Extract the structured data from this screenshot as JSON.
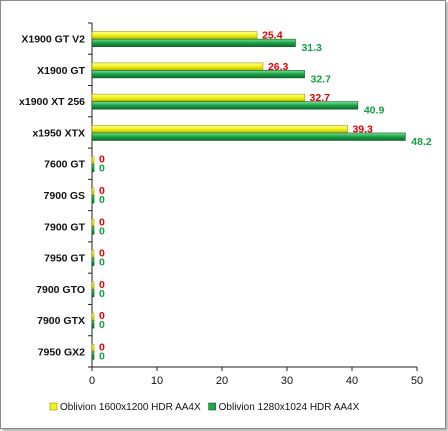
{
  "chart_data": {
    "type": "bar",
    "orientation": "horizontal",
    "categories": [
      "X1900 GT V2",
      "X1900 GT",
      "x1900 XT 256",
      "x1950 XTX",
      "7600 GT",
      "7900 GS",
      "7900 GT",
      "7950 GT",
      "7900 GTO",
      "7900 GTX",
      "7950 GX2"
    ],
    "series": [
      {
        "name": "Oblivion 1600x1200 HDR AA4X",
        "color": "#f2f21a",
        "label_color": "#e00000",
        "values": [
          25.4,
          26.3,
          32.7,
          39.3,
          0,
          0,
          0,
          0,
          0,
          0,
          0
        ],
        "value_labels": [
          "25.4",
          "26.3",
          "32.7",
          "39.3",
          "0",
          "0",
          "0",
          "0",
          "0",
          "0",
          "0"
        ]
      },
      {
        "name": "Oblivion 1280x1024 HDR AA4X",
        "color": "#1ea84a",
        "label_color": "#12a040",
        "values": [
          31.3,
          32.7,
          40.9,
          48.2,
          0,
          0,
          0,
          0,
          0,
          0,
          0
        ],
        "value_labels": [
          "31.3",
          "32.7",
          "40.9",
          "48.2",
          "0",
          "0",
          "0",
          "0",
          "0",
          "0",
          "0"
        ]
      }
    ],
    "xlim": [
      0,
      50
    ],
    "x_ticks": [
      "0",
      "10",
      "20",
      "30",
      "40",
      "50"
    ],
    "grid": false,
    "legend_placement": "bottom",
    "title": "",
    "xlabel": "",
    "ylabel": ""
  }
}
